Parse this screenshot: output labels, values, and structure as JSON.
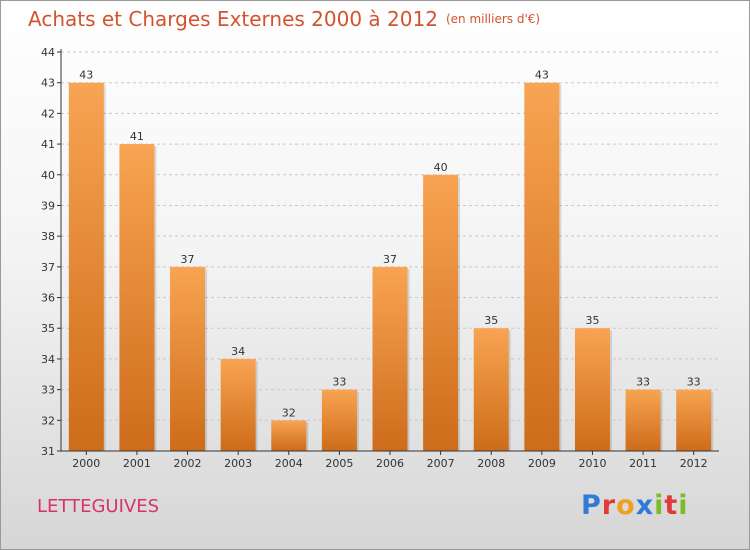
{
  "title": "Achats et Charges Externes 2000 à 2012",
  "unit": "(en milliers d'€)",
  "commune": "LETTEGUIVES",
  "logo": {
    "text": "Proxiti",
    "letters": [
      {
        "ch": "P",
        "color": "#2f7bd6"
      },
      {
        "ch": "r",
        "color": "#e03a3a"
      },
      {
        "ch": "o",
        "color": "#f0a020"
      },
      {
        "ch": "x",
        "color": "#2f7bd6"
      },
      {
        "ch": "i",
        "color": "#7dbb2a"
      },
      {
        "ch": "t",
        "color": "#e03a3a"
      },
      {
        "ch": "i",
        "color": "#7dbb2a"
      }
    ]
  },
  "colors": {
    "title": "#d2542e",
    "commune": "#d8326e",
    "bar_top": "#f8a452",
    "bar_bottom": "#cd6c1a",
    "grid": "#c8c8c8",
    "axis": "#333333"
  },
  "chart_data": {
    "type": "bar",
    "categories": [
      "2000",
      "2001",
      "2002",
      "2003",
      "2004",
      "2005",
      "2006",
      "2007",
      "2008",
      "2009",
      "2010",
      "2011",
      "2012"
    ],
    "values": [
      43,
      41,
      37,
      34,
      32,
      33,
      37,
      40,
      35,
      43,
      35,
      33,
      33
    ],
    "title": "Achats et Charges Externes 2000 à 2012",
    "xlabel": "",
    "ylabel": "",
    "ylim": [
      31,
      44
    ],
    "yticks": [
      31,
      32,
      33,
      34,
      35,
      36,
      37,
      38,
      39,
      40,
      41,
      42,
      43,
      44
    ],
    "grid": true,
    "data_labels": true,
    "legend": "none"
  }
}
